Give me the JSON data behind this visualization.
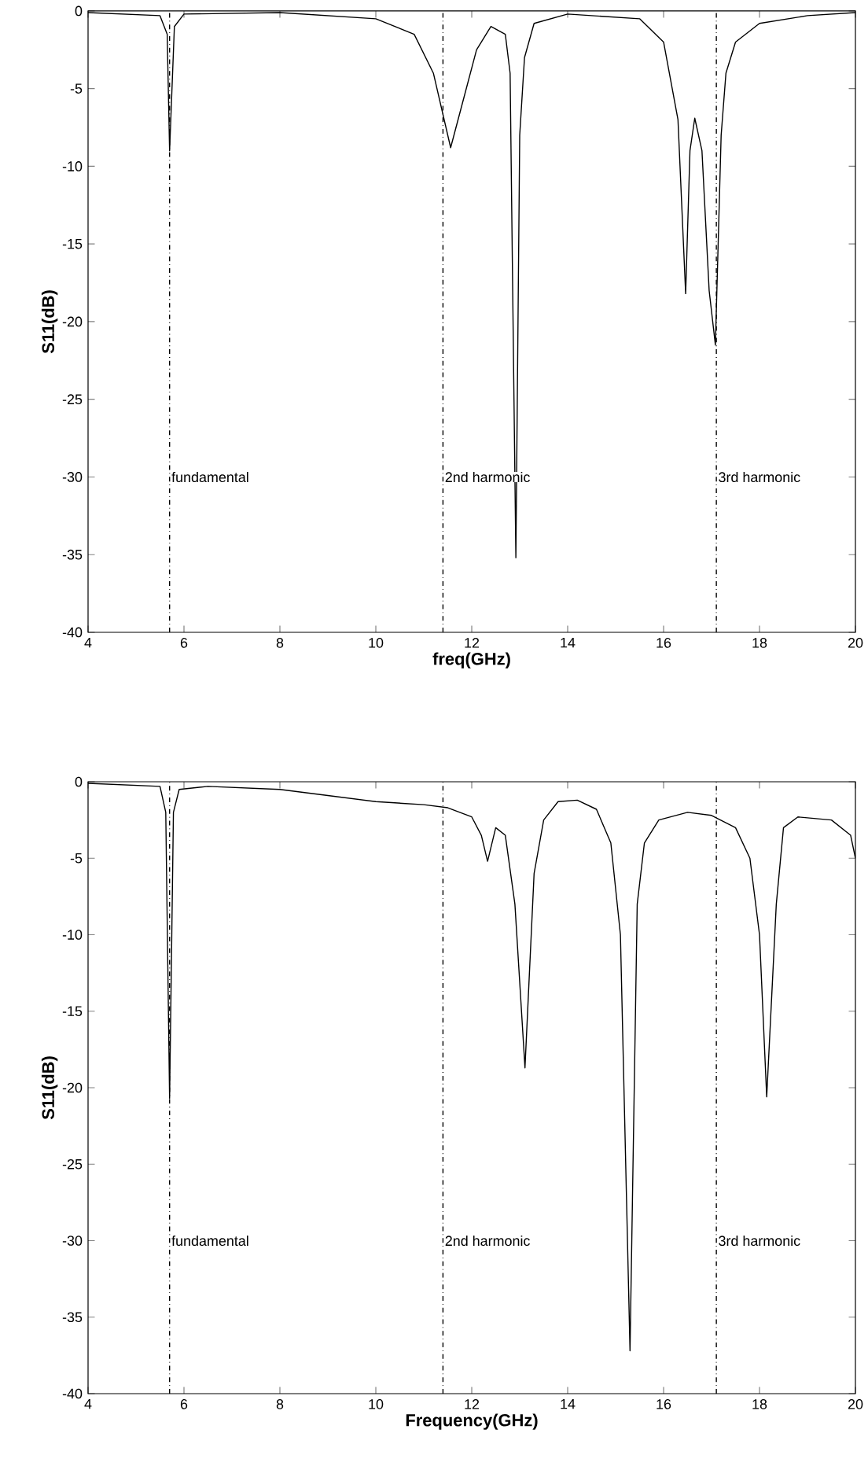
{
  "chart_data": [
    {
      "type": "line",
      "xlabel": "freq(GHz)",
      "ylabel": "S11(dB)",
      "xlim": [
        4,
        20
      ],
      "ylim": [
        -40,
        0
      ],
      "xticks": [
        4,
        6,
        8,
        10,
        12,
        14,
        16,
        18,
        20
      ],
      "yticks": [
        -40,
        -35,
        -30,
        -25,
        -20,
        -15,
        -10,
        -5,
        0
      ],
      "grid": false,
      "series": [
        {
          "color": "#000000",
          "x": [
            4,
            5.5,
            5.65,
            5.7,
            5.8,
            6.0,
            8,
            10,
            10.8,
            11.2,
            11.56,
            11.8,
            12.1,
            12.4,
            12.7,
            12.8,
            12.92,
            13.0,
            13.1,
            13.3,
            14,
            15.5,
            16.0,
            16.3,
            16.46,
            16.55,
            16.65,
            16.8,
            16.95,
            17.08,
            17.2,
            17.3,
            17.5,
            18,
            19,
            20
          ],
          "values": [
            -0.1,
            -0.3,
            -1.5,
            -9,
            -1,
            -0.2,
            -0.1,
            -0.5,
            -1.5,
            -4,
            -8.8,
            -6,
            -2.5,
            -1.0,
            -1.5,
            -4,
            -35.2,
            -8,
            -3,
            -0.8,
            -0.2,
            -0.5,
            -2,
            -7,
            -18.2,
            -9,
            -6.9,
            -9,
            -18,
            -21.5,
            -8,
            -4,
            -2,
            -0.8,
            -0.3,
            -0.1
          ]
        }
      ],
      "ref_lines": [
        {
          "axis": "x",
          "value": 5.7,
          "color": "#000000"
        },
        {
          "axis": "x",
          "value": 11.4,
          "color": "#000000"
        },
        {
          "axis": "x",
          "value": 17.1,
          "color": "#000000"
        }
      ],
      "annotations": [
        {
          "text": "fundamental",
          "x": 5.7,
          "y": -30
        },
        {
          "text": "2nd harmonic",
          "x": 11.4,
          "y": -30
        },
        {
          "text": "3rd harmonic",
          "x": 17.1,
          "y": -30
        }
      ]
    },
    {
      "type": "line",
      "xlabel": "Frequency(GHz)",
      "ylabel": "S11(dB)",
      "xlim": [
        4,
        20
      ],
      "ylim": [
        -40,
        0
      ],
      "xticks": [
        4,
        6,
        8,
        10,
        12,
        14,
        16,
        18,
        20
      ],
      "yticks": [
        -40,
        -35,
        -30,
        -25,
        -20,
        -15,
        -10,
        -5,
        0
      ],
      "grid": false,
      "series": [
        {
          "color": "#000000",
          "x": [
            4,
            5.5,
            5.62,
            5.7,
            5.78,
            5.9,
            6.5,
            8,
            9,
            10,
            11,
            11.5,
            12.0,
            12.2,
            12.33,
            12.5,
            12.7,
            12.9,
            13.11,
            13.3,
            13.5,
            13.8,
            14.2,
            14.6,
            14.9,
            15.1,
            15.3,
            15.45,
            15.6,
            15.9,
            16.5,
            17.0,
            17.5,
            17.8,
            18.0,
            18.15,
            18.35,
            18.5,
            18.8,
            19.5,
            19.9,
            20
          ],
          "values": [
            -0.1,
            -0.3,
            -2,
            -20.7,
            -2,
            -0.5,
            -0.3,
            -0.5,
            -0.9,
            -1.3,
            -1.5,
            -1.7,
            -2.3,
            -3.5,
            -5.2,
            -3.0,
            -3.5,
            -8,
            -18.7,
            -6,
            -2.5,
            -1.3,
            -1.2,
            -1.8,
            -4,
            -10,
            -37.2,
            -8,
            -4,
            -2.5,
            -2.0,
            -2.2,
            -3.0,
            -5,
            -10,
            -20.6,
            -8,
            -3,
            -2.3,
            -2.5,
            -3.5,
            -5.0
          ]
        }
      ],
      "ref_lines": [
        {
          "axis": "x",
          "value": 5.7,
          "color": "#000000"
        },
        {
          "axis": "x",
          "value": 11.4,
          "color": "#000000"
        },
        {
          "axis": "x",
          "value": 17.1,
          "color": "#000000"
        }
      ],
      "annotations": [
        {
          "text": "fundamental",
          "x": 5.7,
          "y": -30
        },
        {
          "text": "2nd harmonic",
          "x": 11.4,
          "y": -30
        },
        {
          "text": "3rd harmonic",
          "x": 17.1,
          "y": -30
        }
      ]
    }
  ]
}
